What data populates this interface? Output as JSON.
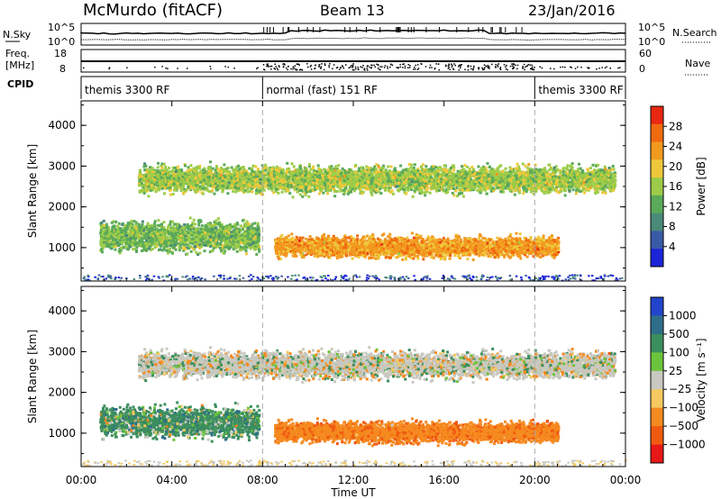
{
  "header": {
    "station": "McMurdo (fitACF)",
    "beam": "Beam 13",
    "date": "23/Jan/2016"
  },
  "aux_panels": {
    "nsky_label": "N.Sky",
    "nsearch_label": "N.Search",
    "nsky_ticks": [
      "10^5",
      "10^0"
    ],
    "nsky_right_ticks": [
      "10^5",
      "10^0"
    ],
    "freq_label": "Freq.",
    "freq_unit": "[MHz]",
    "freq_ticks": [
      "18",
      "8"
    ],
    "nave_label": "Nave",
    "nave_ticks": [
      "60",
      "0"
    ],
    "cpid_label": "CPID",
    "cpid_segments": [
      {
        "label": "themis 3300 RF",
        "start_hour": 0,
        "end_hour": 8
      },
      {
        "label": "normal (fast) 151 RF",
        "start_hour": 8,
        "end_hour": 20
      },
      {
        "label": "themis 3300 RF",
        "start_hour": 20,
        "end_hour": 24
      }
    ]
  },
  "chart_data": [
    {
      "type": "heatmap",
      "title": "",
      "quantity": "Power",
      "xlabel": "",
      "ylabel": "Slant Range [km]",
      "xlim": [
        0,
        24
      ],
      "ylim": [
        180,
        4600
      ],
      "y_ticks": [
        1000,
        2000,
        3000,
        4000
      ],
      "colorbar_label": "Power [dB]",
      "colorbar_ticks": [
        4,
        8,
        12,
        16,
        20,
        24,
        28
      ],
      "colorbar_range": [
        0,
        32
      ],
      "colors": [
        "#1c24d8",
        "#3a5aa8",
        "#4a8a78",
        "#5aaa5a",
        "#9ccc48",
        "#eec83a",
        "#f29a20",
        "#f06a10",
        "#e82810"
      ],
      "scatter_bands_km": [
        {
          "start_hour": 0.8,
          "end_hour": 7.8,
          "center_km": 1300,
          "spread_km": 500,
          "mean_db": 14
        },
        {
          "start_hour": 2.5,
          "end_hour": 23.5,
          "center_km": 2700,
          "spread_km": 450,
          "mean_db": 16
        },
        {
          "start_hour": 8.5,
          "end_hour": 21.0,
          "center_km": 1050,
          "spread_km": 350,
          "mean_db": 24
        }
      ]
    },
    {
      "type": "heatmap",
      "title": "",
      "quantity": "Velocity",
      "xlabel": "Time UT",
      "ylabel": "Slant Range [km]",
      "xlim": [
        0,
        24
      ],
      "ylim": [
        180,
        4600
      ],
      "y_ticks": [
        1000,
        2000,
        3000,
        4000
      ],
      "x_ticks": [
        "00:00",
        "04:00",
        "08:00",
        "12:00",
        "16:00",
        "20:00",
        "00:00"
      ],
      "colorbar_label": "Velocity [m s⁻¹]",
      "colorbar_ticks": [
        "1000",
        "500",
        "100",
        "25",
        "−25",
        "−100",
        "−500",
        "−1000"
      ],
      "colors": [
        "#2244cc",
        "#2f6e8a",
        "#3b8e5e",
        "#6cc43c",
        "#c8c8c0",
        "#f5c860",
        "#f58a20",
        "#f05a10",
        "#e81818"
      ],
      "scatter_bands_km": [
        {
          "start_hour": 0.8,
          "end_hour": 7.8,
          "center_km": 1300,
          "spread_km": 500,
          "mean_mps": 150
        },
        {
          "start_hour": 2.5,
          "end_hour": 23.5,
          "center_km": 2700,
          "spread_km": 450,
          "mean_mps": 0
        },
        {
          "start_hour": 8.5,
          "end_hour": 21.0,
          "center_km": 1050,
          "spread_km": 350,
          "mean_mps": -300
        }
      ]
    }
  ]
}
